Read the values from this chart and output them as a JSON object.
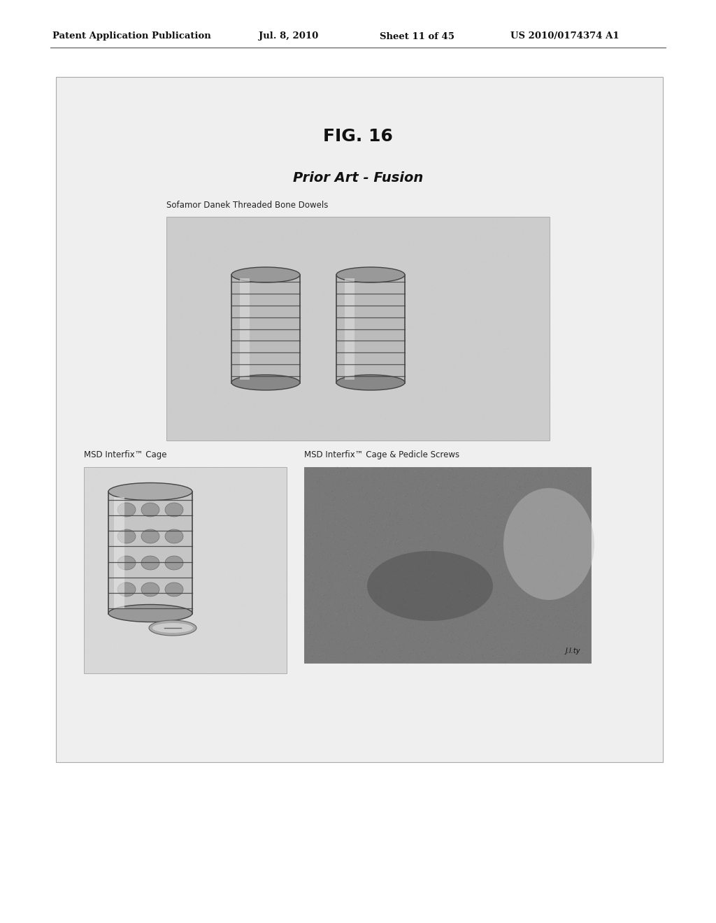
{
  "background_color": "#ffffff",
  "page_width": 10.24,
  "page_height": 13.2,
  "header_text": "Patent Application Publication",
  "header_date": "Jul. 8, 2010",
  "header_sheet": "Sheet 11 of 45",
  "header_patent": "US 2010/0174374 A1",
  "fig_title": "FIG. 16",
  "fig_subtitle": "Prior Art - Fusion",
  "label1": "Sofamor Danek Threaded Bone Dowels",
  "label2": "MSD Interfix™ Cage",
  "label3": "MSD Interfix™ Cage & Pedicle Screws",
  "page_bg": "#ffffff",
  "inner_box_bg": "#efefef",
  "img1_bg": "#cccccc",
  "img2_bg": "#d8d8d8",
  "img3_bg": "#787878"
}
